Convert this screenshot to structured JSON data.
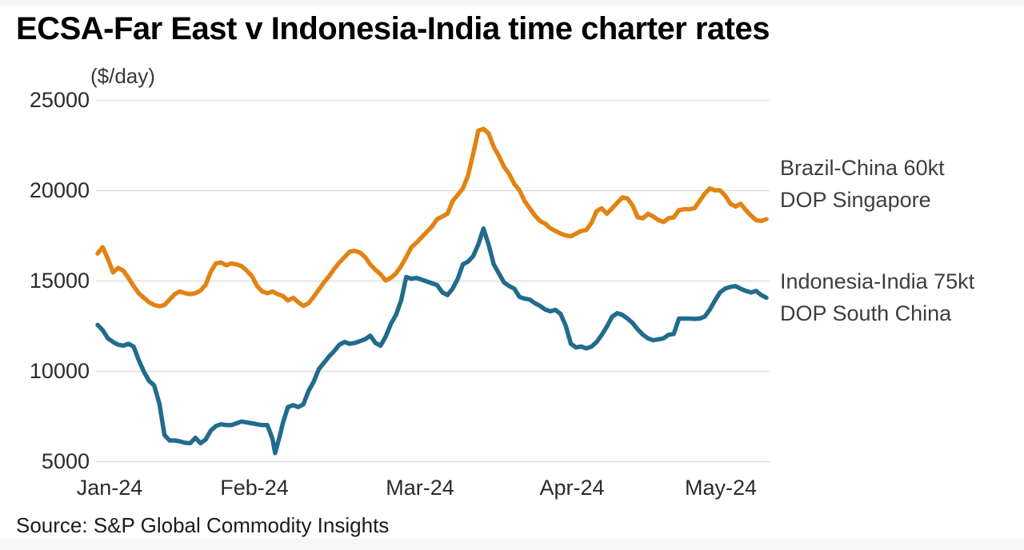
{
  "title": "ECSA-Far East v Indonesia-India time charter rates",
  "unit_label": "($/day)",
  "source": "Source: S&P Global Commodity Insights",
  "y_axis": {
    "labels": [
      "25000",
      "20000",
      "15000",
      "10000",
      "5000"
    ]
  },
  "x_axis": {
    "labels": [
      "Jan-24",
      "Feb-24",
      "Mar-24",
      "Apr-24",
      "May-24"
    ]
  },
  "legend": {
    "brazil": {
      "line1": "Brazil-China 60kt",
      "line2": "DOP Singapore"
    },
    "indonesia": {
      "line1": "Indonesia-India 75kt",
      "line2": "DOP South China"
    }
  },
  "colors": {
    "brazil_china": "#E28313",
    "indonesia_india": "#216C8D",
    "gridline": "#DADADA",
    "title_text": "#000000",
    "axis_text": "#2B2B2B",
    "legend_text": "#3E3E3E"
  },
  "chart_data": {
    "type": "line",
    "title": "ECSA-Far East v Indonesia-India time charter rates",
    "ylabel": "($/day)",
    "ylim": [
      5000,
      25000
    ],
    "yticks": [
      25000,
      20000,
      15000,
      10000,
      5000
    ],
    "xtick_labels": [
      "Jan-24",
      "Feb-24",
      "Mar-24",
      "Apr-24",
      "May-24"
    ],
    "x_unit": "days since 1 Jan 2024",
    "x_range_days": [
      0,
      130
    ],
    "grid": "horizontal",
    "legend_position": "right",
    "series": [
      {
        "name": "Brazil-China 60kt DOP Singapore",
        "color": "#E28313",
        "points": [
          [
            0,
            16500
          ],
          [
            1,
            16850
          ],
          [
            2,
            16200
          ],
          [
            3,
            15450
          ],
          [
            4,
            15700
          ],
          [
            5,
            15550
          ],
          [
            6,
            15150
          ],
          [
            7,
            14700
          ],
          [
            8,
            14300
          ],
          [
            9,
            14050
          ],
          [
            10,
            13800
          ],
          [
            11,
            13650
          ],
          [
            12,
            13580
          ],
          [
            13,
            13650
          ],
          [
            14,
            13950
          ],
          [
            15,
            14250
          ],
          [
            16,
            14400
          ],
          [
            17,
            14300
          ],
          [
            18,
            14250
          ],
          [
            19,
            14300
          ],
          [
            20,
            14450
          ],
          [
            21,
            14750
          ],
          [
            22,
            15500
          ],
          [
            23,
            15950
          ],
          [
            24,
            16000
          ],
          [
            25,
            15850
          ],
          [
            26,
            15950
          ],
          [
            27,
            15900
          ],
          [
            28,
            15800
          ],
          [
            29,
            15550
          ],
          [
            30,
            15250
          ],
          [
            31,
            14700
          ],
          [
            32,
            14400
          ],
          [
            33,
            14300
          ],
          [
            34,
            14400
          ],
          [
            35,
            14250
          ],
          [
            36,
            14150
          ],
          [
            37,
            13900
          ],
          [
            38,
            14050
          ],
          [
            39,
            13800
          ],
          [
            40,
            13600
          ],
          [
            41,
            13750
          ],
          [
            42,
            14100
          ],
          [
            43,
            14500
          ],
          [
            44,
            14900
          ],
          [
            45,
            15250
          ],
          [
            46,
            15650
          ],
          [
            47,
            16000
          ],
          [
            48,
            16300
          ],
          [
            49,
            16600
          ],
          [
            50,
            16650
          ],
          [
            51,
            16550
          ],
          [
            52,
            16300
          ],
          [
            53,
            15900
          ],
          [
            54,
            15600
          ],
          [
            55,
            15350
          ],
          [
            56,
            15000
          ],
          [
            57,
            15150
          ],
          [
            58,
            15400
          ],
          [
            59,
            15800
          ],
          [
            60,
            16300
          ],
          [
            61,
            16850
          ],
          [
            62,
            17100
          ],
          [
            63,
            17400
          ],
          [
            64,
            17700
          ],
          [
            65,
            18000
          ],
          [
            66,
            18400
          ],
          [
            67,
            18550
          ],
          [
            68,
            18700
          ],
          [
            69,
            19400
          ],
          [
            70,
            19750
          ],
          [
            71,
            20100
          ],
          [
            72,
            20800
          ],
          [
            73,
            22000
          ],
          [
            74,
            23300
          ],
          [
            75,
            23400
          ],
          [
            76,
            23150
          ],
          [
            77,
            22400
          ],
          [
            78,
            21900
          ],
          [
            79,
            21300
          ],
          [
            80,
            20900
          ],
          [
            81,
            20350
          ],
          [
            82,
            20000
          ],
          [
            83,
            19400
          ],
          [
            84,
            19000
          ],
          [
            85,
            18600
          ],
          [
            86,
            18300
          ],
          [
            87,
            18150
          ],
          [
            88,
            17900
          ],
          [
            89,
            17750
          ],
          [
            90,
            17600
          ],
          [
            91,
            17500
          ],
          [
            92,
            17450
          ],
          [
            93,
            17600
          ],
          [
            94,
            17750
          ],
          [
            95,
            17800
          ],
          [
            96,
            18200
          ],
          [
            97,
            18850
          ],
          [
            98,
            19000
          ],
          [
            99,
            18700
          ],
          [
            100,
            19000
          ],
          [
            101,
            19300
          ],
          [
            102,
            19600
          ],
          [
            103,
            19550
          ],
          [
            104,
            19150
          ],
          [
            105,
            18500
          ],
          [
            106,
            18450
          ],
          [
            107,
            18700
          ],
          [
            108,
            18550
          ],
          [
            109,
            18350
          ],
          [
            110,
            18250
          ],
          [
            111,
            18450
          ],
          [
            112,
            18500
          ],
          [
            113,
            18900
          ],
          [
            114,
            18950
          ],
          [
            115,
            18950
          ],
          [
            116,
            19000
          ],
          [
            117,
            19400
          ],
          [
            118,
            19800
          ],
          [
            119,
            20100
          ],
          [
            120,
            20000
          ],
          [
            121,
            20000
          ],
          [
            122,
            19700
          ],
          [
            123,
            19250
          ],
          [
            124,
            19100
          ],
          [
            125,
            19250
          ],
          [
            126,
            18900
          ],
          [
            127,
            18600
          ],
          [
            128,
            18350
          ],
          [
            129,
            18300
          ],
          [
            130,
            18400
          ]
        ]
      },
      {
        "name": "Indonesia-India 75kt DOP South China",
        "color": "#216C8D",
        "points": [
          [
            0,
            12550
          ],
          [
            1,
            12250
          ],
          [
            2,
            11800
          ],
          [
            3,
            11600
          ],
          [
            4,
            11450
          ],
          [
            5,
            11400
          ],
          [
            6,
            11500
          ],
          [
            7,
            11350
          ],
          [
            8,
            10600
          ],
          [
            9,
            9950
          ],
          [
            10,
            9450
          ],
          [
            11,
            9200
          ],
          [
            12,
            8200
          ],
          [
            13,
            6450
          ],
          [
            14,
            6150
          ],
          [
            15,
            6150
          ],
          [
            16,
            6100
          ],
          [
            17,
            6020
          ],
          [
            18,
            6000
          ],
          [
            19,
            6300
          ],
          [
            20,
            6000
          ],
          [
            21,
            6200
          ],
          [
            22,
            6700
          ],
          [
            23,
            6950
          ],
          [
            24,
            7050
          ],
          [
            25,
            7000
          ],
          [
            26,
            7000
          ],
          [
            27,
            7100
          ],
          [
            28,
            7200
          ],
          [
            29,
            7150
          ],
          [
            30,
            7100
          ],
          [
            31,
            7050
          ],
          [
            32,
            7000
          ],
          [
            33,
            7000
          ],
          [
            34,
            6250
          ],
          [
            34.5,
            5450
          ],
          [
            35.5,
            6500
          ],
          [
            36,
            7100
          ],
          [
            37,
            8000
          ],
          [
            38,
            8100
          ],
          [
            39,
            8000
          ],
          [
            40,
            8150
          ],
          [
            41,
            8900
          ],
          [
            42,
            9400
          ],
          [
            43,
            10100
          ],
          [
            44,
            10450
          ],
          [
            45,
            10800
          ],
          [
            46,
            11100
          ],
          [
            47,
            11450
          ],
          [
            48,
            11600
          ],
          [
            49,
            11500
          ],
          [
            50,
            11550
          ],
          [
            51,
            11650
          ],
          [
            52,
            11750
          ],
          [
            53,
            11950
          ],
          [
            54,
            11550
          ],
          [
            55,
            11400
          ],
          [
            56,
            11900
          ],
          [
            57,
            12600
          ],
          [
            58,
            13100
          ],
          [
            59,
            13900
          ],
          [
            60,
            15200
          ],
          [
            61,
            15100
          ],
          [
            62,
            15150
          ],
          [
            63,
            15050
          ],
          [
            64,
            14950
          ],
          [
            65,
            14850
          ],
          [
            66,
            14750
          ],
          [
            67,
            14350
          ],
          [
            68,
            14200
          ],
          [
            69,
            14550
          ],
          [
            70,
            15100
          ],
          [
            71,
            15900
          ],
          [
            72,
            16050
          ],
          [
            73,
            16350
          ],
          [
            74,
            17000
          ],
          [
            75,
            17880
          ],
          [
            76,
            17000
          ],
          [
            77,
            15900
          ],
          [
            78,
            15400
          ],
          [
            79,
            14900
          ],
          [
            80,
            14700
          ],
          [
            81,
            14550
          ],
          [
            82,
            14100
          ],
          [
            83,
            14000
          ],
          [
            84,
            13950
          ],
          [
            85,
            13750
          ],
          [
            86,
            13600
          ],
          [
            87,
            13400
          ],
          [
            88,
            13300
          ],
          [
            89,
            13380
          ],
          [
            90,
            13150
          ],
          [
            91,
            12500
          ],
          [
            92,
            11500
          ],
          [
            93,
            11300
          ],
          [
            94,
            11350
          ],
          [
            95,
            11250
          ],
          [
            96,
            11350
          ],
          [
            97,
            11600
          ],
          [
            98,
            12000
          ],
          [
            99,
            12450
          ],
          [
            100,
            13000
          ],
          [
            101,
            13200
          ],
          [
            102,
            13100
          ],
          [
            103,
            12900
          ],
          [
            104,
            12650
          ],
          [
            105,
            12300
          ],
          [
            106,
            12000
          ],
          [
            107,
            11800
          ],
          [
            108,
            11700
          ],
          [
            109,
            11750
          ],
          [
            110,
            11800
          ],
          [
            111,
            12000
          ],
          [
            112,
            12050
          ],
          [
            113,
            12900
          ],
          [
            114,
            12900
          ],
          [
            115,
            12900
          ],
          [
            116,
            12880
          ],
          [
            117,
            12900
          ],
          [
            118,
            13000
          ],
          [
            119,
            13400
          ],
          [
            120,
            13900
          ],
          [
            121,
            14350
          ],
          [
            122,
            14560
          ],
          [
            123,
            14650
          ],
          [
            124,
            14700
          ],
          [
            125,
            14550
          ],
          [
            126,
            14430
          ],
          [
            127,
            14340
          ],
          [
            128,
            14430
          ],
          [
            129,
            14200
          ],
          [
            130,
            14050
          ]
        ]
      }
    ]
  }
}
